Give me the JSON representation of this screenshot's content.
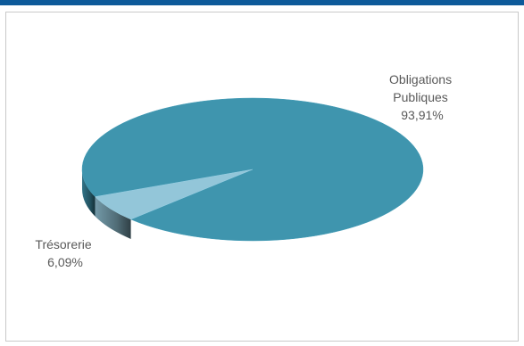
{
  "chart_data": {
    "type": "pie",
    "style": "3d",
    "title": "",
    "slices": [
      {
        "label_lines": [
          "Obligations",
          "Publiques"
        ],
        "value": 93.91,
        "value_label": "93,91%",
        "color": "#3f95ae"
      },
      {
        "label_lines": [
          "Trésorerie"
        ],
        "value": 6.09,
        "value_label": "6,09%",
        "color": "#93c6d9"
      }
    ]
  },
  "colors": {
    "accent_bar": "#0d5a9a",
    "frame_border": "#c9c9c9",
    "label_text": "#595959"
  }
}
